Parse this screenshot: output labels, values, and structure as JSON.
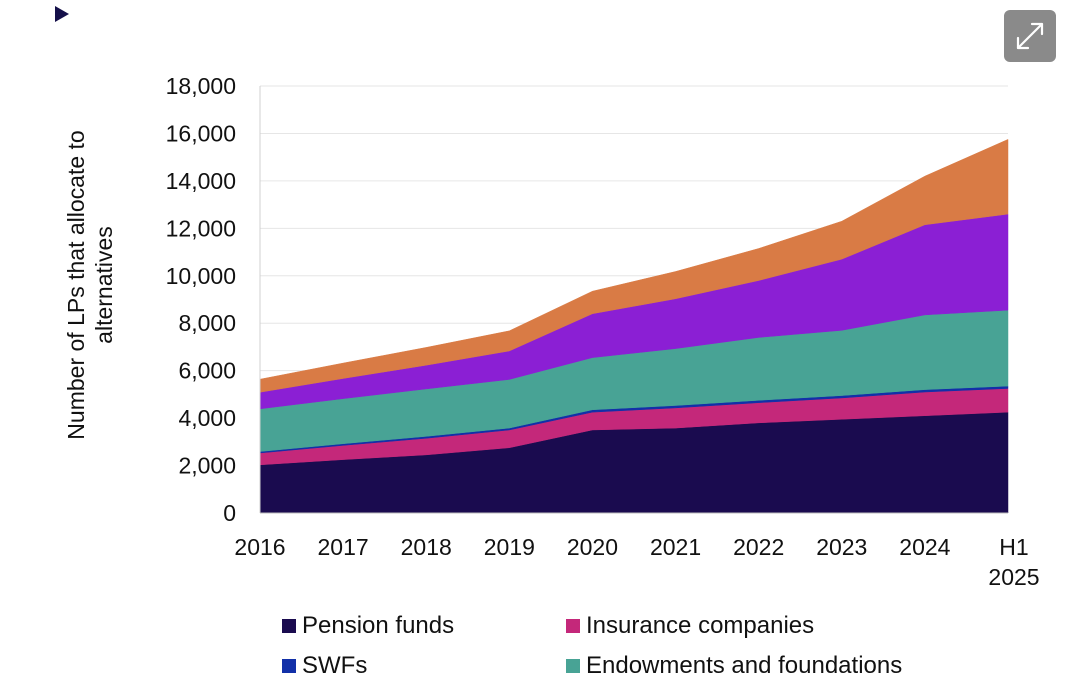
{
  "chart_data": {
    "type": "area",
    "stacked": true,
    "categories": [
      "2016",
      "2017",
      "2018",
      "2019",
      "2020",
      "2021",
      "2022",
      "2023",
      "2024",
      "H1 2025"
    ],
    "ylabel": "Number of LPs that allocate to alternatives",
    "ylim": [
      0,
      18000
    ],
    "yticks": [
      0,
      2000,
      4000,
      6000,
      8000,
      10000,
      12000,
      14000,
      16000,
      18000
    ],
    "ytick_labels": [
      "0",
      "2,000",
      "4,000",
      "6,000",
      "8,000",
      "10,000",
      "12,000",
      "14,000",
      "16,000",
      "18,000"
    ],
    "grid": true,
    "legend_position": "bottom",
    "series": [
      {
        "name": "Pension funds",
        "color": "#1a0b4f",
        "values": [
          2030,
          2250,
          2450,
          2750,
          3500,
          3580,
          3800,
          3950,
          4100,
          4250
        ]
      },
      {
        "name": "Insurance companies",
        "color": "#c4287a",
        "values": [
          500,
          600,
          700,
          750,
          750,
          850,
          850,
          900,
          1000,
          1000
        ]
      },
      {
        "name": "SWFs",
        "color": "#1230a8",
        "values": [
          60,
          70,
          80,
          80,
          100,
          100,
          100,
          100,
          100,
          100
        ]
      },
      {
        "name": "Endowments and foundations",
        "color": "#48a395",
        "values": [
          1800,
          1900,
          2000,
          2050,
          2200,
          2400,
          2650,
          2750,
          3150,
          3200
        ]
      },
      {
        "name": "",
        "color": "#8b1fd4",
        "values": [
          700,
          850,
          1000,
          1200,
          1850,
          2100,
          2400,
          3000,
          3800,
          4050
        ]
      },
      {
        "name": "",
        "color": "#d97b45",
        "values": [
          550,
          650,
          750,
          850,
          950,
          1150,
          1350,
          1600,
          2050,
          3150
        ]
      }
    ]
  }
}
